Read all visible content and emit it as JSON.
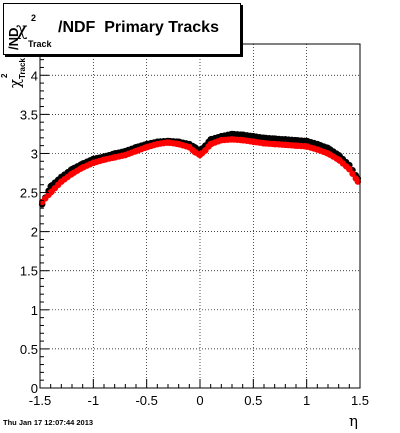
{
  "title": {
    "chi": "χ",
    "sup": "2",
    "sub": "Track",
    "rest": "/NDF  Primary Tracks"
  },
  "ylabel": {
    "chi": "χ",
    "sup": "2",
    "sub": "Track",
    "rest": "/ND"
  },
  "xlabel": "η",
  "timestamp": "Thu Jan 17 12:07:44 2013",
  "colors": {
    "series_black": "#000000",
    "series_red": "#ff0000",
    "grid": "#000000",
    "background": "#ffffff"
  },
  "chart_data": {
    "type": "scatter",
    "xlim": [
      -1.5,
      1.5
    ],
    "ylim": [
      0,
      4.4
    ],
    "grid": true,
    "x_ticks": [
      "-1.5",
      "-1",
      "-0.5",
      "0",
      "0.5",
      "1",
      "1.5"
    ],
    "x_tick_values": [
      -1.5,
      -1,
      -0.5,
      0,
      0.5,
      1,
      1.5
    ],
    "y_ticks": [
      "0",
      "0.5",
      "1",
      "1.5",
      "2",
      "2.5",
      "3",
      "3.5",
      "4"
    ],
    "y_tick_values": [
      0,
      0.5,
      1,
      1.5,
      2,
      2.5,
      3,
      3.5,
      4
    ],
    "series": [
      {
        "color": "#000000",
        "x": [
          -1.48,
          -1.4,
          -1.3,
          -1.2,
          -1.1,
          -1.0,
          -0.9,
          -0.8,
          -0.7,
          -0.6,
          -0.5,
          -0.4,
          -0.3,
          -0.2,
          -0.1,
          -0.05,
          0.0,
          0.05,
          0.1,
          0.2,
          0.3,
          0.4,
          0.5,
          0.6,
          0.7,
          0.8,
          0.9,
          1.0,
          1.1,
          1.2,
          1.3,
          1.4,
          1.48
        ],
        "y": [
          2.35,
          2.58,
          2.7,
          2.8,
          2.87,
          2.93,
          2.96,
          3.0,
          3.03,
          3.08,
          3.12,
          3.15,
          3.16,
          3.15,
          3.12,
          3.08,
          3.04,
          3.1,
          3.18,
          3.22,
          3.25,
          3.24,
          3.22,
          3.2,
          3.19,
          3.18,
          3.17,
          3.16,
          3.12,
          3.07,
          2.98,
          2.85,
          2.68
        ]
      },
      {
        "color": "#ff0000",
        "x": [
          -1.48,
          -1.4,
          -1.3,
          -1.2,
          -1.1,
          -1.0,
          -0.9,
          -0.8,
          -0.7,
          -0.6,
          -0.5,
          -0.4,
          -0.3,
          -0.2,
          -0.1,
          -0.05,
          0.0,
          0.05,
          0.1,
          0.2,
          0.3,
          0.4,
          0.5,
          0.6,
          0.7,
          0.8,
          0.9,
          1.0,
          1.1,
          1.2,
          1.3,
          1.4,
          1.48
        ],
        "y": [
          2.38,
          2.5,
          2.64,
          2.74,
          2.82,
          2.88,
          2.92,
          2.95,
          2.98,
          3.03,
          3.08,
          3.12,
          3.14,
          3.12,
          3.08,
          3.02,
          2.98,
          3.04,
          3.12,
          3.17,
          3.18,
          3.17,
          3.15,
          3.13,
          3.12,
          3.11,
          3.1,
          3.09,
          3.05,
          3.0,
          2.92,
          2.8,
          2.64
        ]
      }
    ]
  }
}
